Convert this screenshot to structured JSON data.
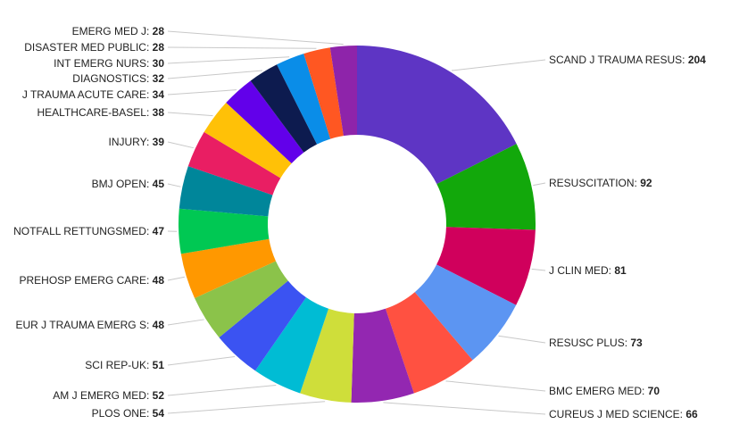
{
  "chart_data": {
    "type": "pie",
    "donut": true,
    "legend": "none",
    "labels_with_leader_lines": true,
    "slices": [
      {
        "label": "SCAND J TRAUMA RESUS",
        "value": 204,
        "color": "#5e35c4"
      },
      {
        "label": "RESUSCITATION",
        "value": 92,
        "color": "#12a80b"
      },
      {
        "label": "J CLIN MED",
        "value": 81,
        "color": "#d0005c"
      },
      {
        "label": "RESUSC PLUS",
        "value": 73,
        "color": "#5c95f2"
      },
      {
        "label": "BMC EMERG MED",
        "value": 70,
        "color": "#ff5141"
      },
      {
        "label": "CUREUS J MED SCIENCE",
        "value": 66,
        "color": "#9327b1"
      },
      {
        "label": "PLOS ONE",
        "value": 54,
        "color": "#cfde3a"
      },
      {
        "label": "AM J EMERG MED",
        "value": 52,
        "color": "#00bcd4"
      },
      {
        "label": "SCI REP-UK",
        "value": 51,
        "color": "#3b53f2"
      },
      {
        "label": "EUR J TRAUMA EMERG S",
        "value": 48,
        "color": "#8bc34a"
      },
      {
        "label": "PREHOSP EMERG CARE",
        "value": 48,
        "color": "#ff9800"
      },
      {
        "label": "NOTFALL RETTUNGSMED",
        "value": 47,
        "color": "#00c853"
      },
      {
        "label": "BMJ OPEN",
        "value": 45,
        "color": "#00869a"
      },
      {
        "label": "INJURY",
        "value": 39,
        "color": "#e91e63"
      },
      {
        "label": "HEALTHCARE-BASEL",
        "value": 38,
        "color": "#ffc107"
      },
      {
        "label": "J TRAUMA ACUTE CARE",
        "value": 34,
        "color": "#6200ea"
      },
      {
        "label": "DIAGNOSTICS",
        "value": 32,
        "color": "#0d1b4f"
      },
      {
        "label": "INT EMERG NURS",
        "value": 30,
        "color": "#0a8de8"
      },
      {
        "label": "DISASTER MED PUBLIC",
        "value": 28,
        "color": "#ff5722"
      },
      {
        "label": "EMERG MED J",
        "value": 28,
        "color": "#8e24aa"
      }
    ]
  }
}
